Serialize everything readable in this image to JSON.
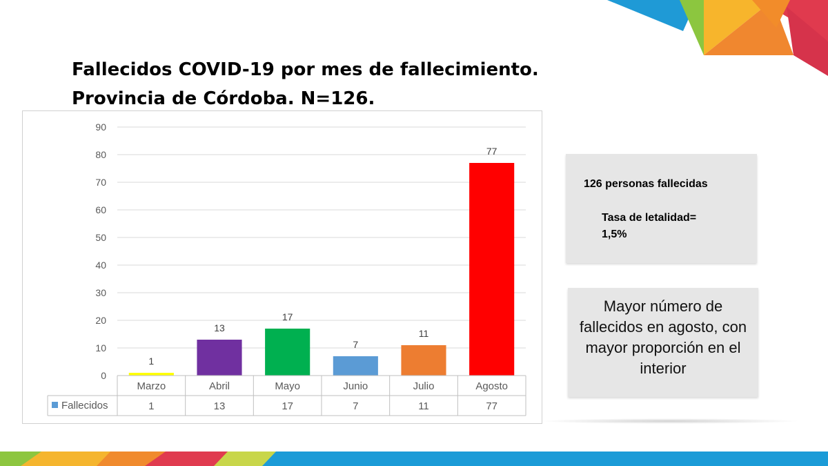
{
  "chart_data": {
    "type": "bar",
    "title": "",
    "xlabel": "",
    "ylabel": "",
    "categories": [
      "Marzo",
      "Abril",
      "Mayo",
      "Junio",
      "Julio",
      "Agosto"
    ],
    "series": [
      {
        "name": "Fallecidos",
        "values": [
          1,
          13,
          17,
          7,
          11,
          77
        ]
      }
    ],
    "bar_colors": [
      "#ffff00",
      "#7030a0",
      "#00b050",
      "#5b9bd5",
      "#ed7d31",
      "#ff0000"
    ],
    "legend_color": "#5b9bd5",
    "ylim": [
      0,
      90
    ],
    "yticks": [
      0,
      10,
      20,
      30,
      40,
      50,
      60,
      70,
      80,
      90
    ],
    "grid": true,
    "data_table": true
  },
  "slide": {
    "title_line1": "Fallecidos COVID-19 por mes de fallecimiento.",
    "title_line2": "Provincia de Córdoba. N=126."
  },
  "info_box": {
    "line1": "126  personas fallecidas",
    "line2": "Tasa de letalidad= 1,5%"
  },
  "note_box": {
    "text": "Mayor número de fallecidos en agosto, con mayor proporción en el interior"
  }
}
